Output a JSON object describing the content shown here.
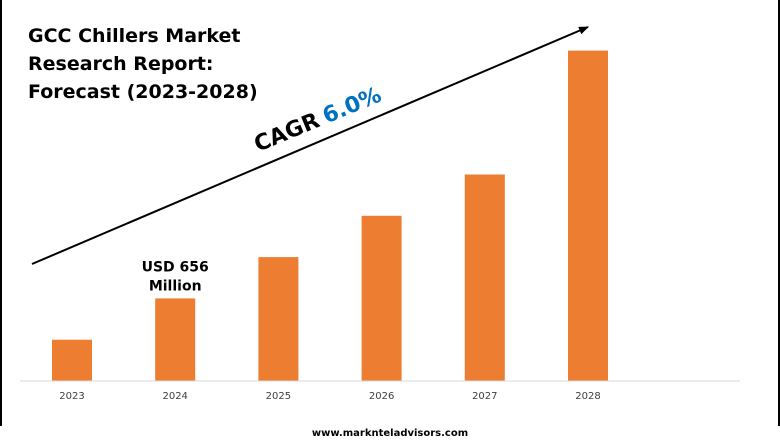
{
  "chart_data": {
    "type": "bar",
    "title": "GCC Chillers Market Research Report: Forecast (2023-2028)",
    "categories": [
      "2023",
      "2024",
      "2025",
      "2026",
      "2027",
      "2028"
    ],
    "values": [
      1,
      2,
      3,
      4,
      5,
      8
    ],
    "bar_color": "#ED7D31",
    "annotations": [
      {
        "category": "2024",
        "lines": [
          "USD 656",
          "Million"
        ]
      }
    ],
    "cagr": {
      "label": "CAGR",
      "value": "6.0%",
      "value_color": "#0070C0"
    },
    "ylim": [
      0,
      8.5
    ],
    "grid": false,
    "legend": "none"
  },
  "footer": {
    "url": "www.marknteladvisors.com"
  }
}
